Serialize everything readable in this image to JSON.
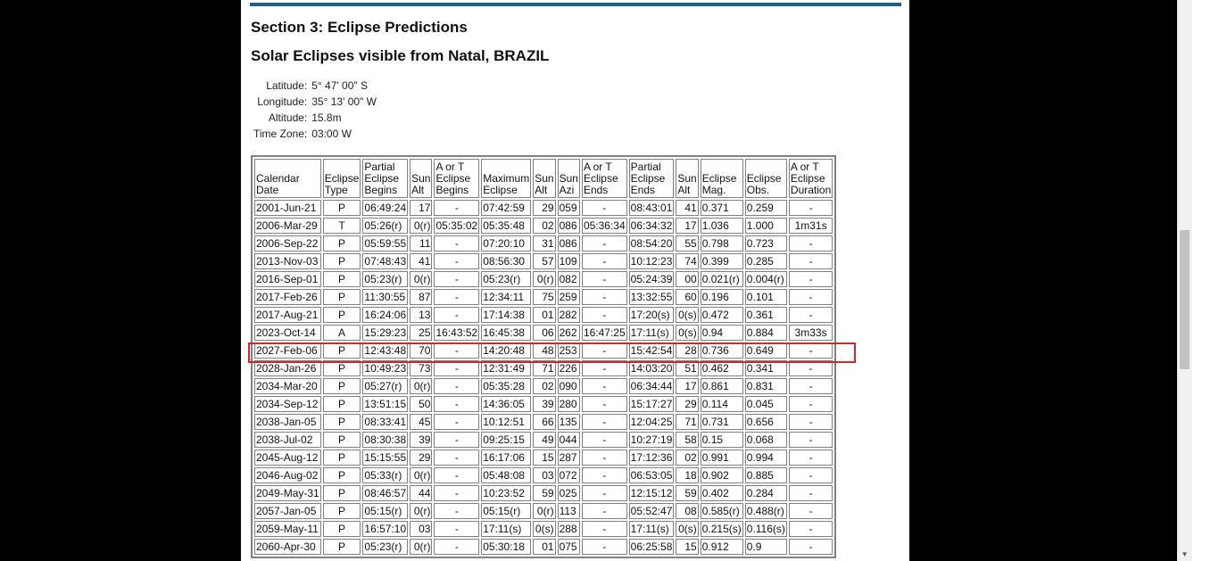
{
  "section_title": "Section 3: Eclipse Predictions",
  "subtitle": "Solar Eclipses visible from Natal, BRAZIL",
  "location": [
    {
      "label": "Latitude:",
      "value": "5° 47' 00\" S"
    },
    {
      "label": "Longitude:",
      "value": "35° 13' 00\" W"
    },
    {
      "label": "Altitude:",
      "value": "15.8m"
    },
    {
      "label": "Time Zone:",
      "value": "03:00 W"
    }
  ],
  "table": {
    "headers": [
      [
        "Calendar",
        "Date"
      ],
      [
        "Eclipse",
        "Type"
      ],
      [
        "Partial",
        "Eclipse",
        "Begins"
      ],
      [
        "Sun",
        "Alt"
      ],
      [
        "A or T",
        "Eclipse",
        "Begins"
      ],
      [
        "Maximum",
        "Eclipse"
      ],
      [
        "Sun",
        "Alt"
      ],
      [
        "Sun",
        "Azi"
      ],
      [
        "A or T",
        "Eclipse",
        "Ends"
      ],
      [
        "Partial",
        "Eclipse",
        "Ends"
      ],
      [
        "Sun",
        "Alt"
      ],
      [
        "Eclipse",
        "Mag."
      ],
      [
        "Eclipse",
        "Obs."
      ],
      [
        "A or T",
        "Eclipse",
        "Duration"
      ]
    ],
    "rows": [
      [
        "2001-Jun-21",
        "P",
        "06:49:24",
        "17",
        "-",
        "07:42:59",
        "29",
        "059",
        "-",
        "08:43:01",
        "41",
        "0.371",
        "0.259",
        "-"
      ],
      [
        "2006-Mar-29",
        "T",
        "05:26(r)",
        "0(r)",
        "05:35:02",
        "05:35:48",
        "02",
        "086",
        "05:36:34",
        "06:34:32",
        "17",
        "1.036",
        "1.000",
        "1m31s"
      ],
      [
        "2006-Sep-22",
        "P",
        "05:59:55",
        "11",
        "-",
        "07:20:10",
        "31",
        "086",
        "-",
        "08:54:20",
        "55",
        "0.798",
        "0.723",
        "-"
      ],
      [
        "2013-Nov-03",
        "P",
        "07:48:43",
        "41",
        "-",
        "08:56:30",
        "57",
        "109",
        "-",
        "10:12:23",
        "74",
        "0.399",
        "0.285",
        "-"
      ],
      [
        "2016-Sep-01",
        "P",
        "05:23(r)",
        "0(r)",
        "-",
        "05:23(r)",
        "0(r)",
        "082",
        "-",
        "05:24:39",
        "00",
        "0.021(r)",
        "0.004(r)",
        "-"
      ],
      [
        "2017-Feb-26",
        "P",
        "11:30:55",
        "87",
        "-",
        "12:34:11",
        "75",
        "259",
        "-",
        "13:32:55",
        "60",
        "0.196",
        "0.101",
        "-"
      ],
      [
        "2017-Aug-21",
        "P",
        "16:24:06",
        "13",
        "-",
        "17:14:38",
        "01",
        "282",
        "-",
        "17:20(s)",
        "0(s)",
        "0.472",
        "0.361",
        "-"
      ],
      [
        "2023-Oct-14",
        "A",
        "15:29:23",
        "25",
        "16:43:52",
        "16:45:38",
        "06",
        "262",
        "16:47:25",
        "17:11(s)",
        "0(s)",
        "0.94",
        "0.884",
        "3m33s"
      ],
      [
        "2027-Feb-06",
        "P",
        "12:43:48",
        "70",
        "-",
        "14:20:48",
        "48",
        "253",
        "-",
        "15:42:54",
        "28",
        "0.736",
        "0.649",
        "-"
      ],
      [
        "2028-Jan-26",
        "P",
        "10:49:23",
        "73",
        "-",
        "12:31:49",
        "71",
        "226",
        "-",
        "14:03:20",
        "51",
        "0.462",
        "0.341",
        "-"
      ],
      [
        "2034-Mar-20",
        "P",
        "05:27(r)",
        "0(r)",
        "-",
        "05:35:28",
        "02",
        "090",
        "-",
        "06:34:44",
        "17",
        "0.861",
        "0.831",
        "-"
      ],
      [
        "2034-Sep-12",
        "P",
        "13:51:15",
        "50",
        "-",
        "14:36:05",
        "39",
        "280",
        "-",
        "15:17:27",
        "29",
        "0.114",
        "0.045",
        "-"
      ],
      [
        "2038-Jan-05",
        "P",
        "08:33:41",
        "45",
        "-",
        "10:12:51",
        "66",
        "135",
        "-",
        "12:04:25",
        "71",
        "0.731",
        "0.656",
        "-"
      ],
      [
        "2038-Jul-02",
        "P",
        "08:30:38",
        "39",
        "-",
        "09:25:15",
        "49",
        "044",
        "-",
        "10:27:19",
        "58",
        "0.15",
        "0.068",
        "-"
      ],
      [
        "2045-Aug-12",
        "P",
        "15:15:55",
        "29",
        "-",
        "16:17:06",
        "15",
        "287",
        "-",
        "17:12:36",
        "02",
        "0.991",
        "0.994",
        "-"
      ],
      [
        "2046-Aug-02",
        "P",
        "05:33(r)",
        "0(r)",
        "-",
        "05:48:08",
        "03",
        "072",
        "-",
        "06:53:05",
        "18",
        "0.902",
        "0.885",
        "-"
      ],
      [
        "2049-May-31",
        "P",
        "08:46:57",
        "44",
        "-",
        "10:23:52",
        "59",
        "025",
        "-",
        "12:15:12",
        "59",
        "0.402",
        "0.284",
        "-"
      ],
      [
        "2057-Jan-05",
        "P",
        "05:15(r)",
        "0(r)",
        "-",
        "05:15(r)",
        "0(r)",
        "113",
        "-",
        "05:52:47",
        "08",
        "0.585(r)",
        "0.488(r)",
        "-"
      ],
      [
        "2059-May-11",
        "P",
        "16:57:10",
        "03",
        "-",
        "17:11(s)",
        "0(s)",
        "288",
        "-",
        "17:11(s)",
        "0(s)",
        "0.215(s)",
        "0.116(s)",
        "-"
      ],
      [
        "2060-Apr-30",
        "P",
        "05:23(r)",
        "0(r)",
        "-",
        "05:30:18",
        "01",
        "075",
        "-",
        "06:25:58",
        "15",
        "0.912",
        "0.9",
        "-"
      ]
    ],
    "col_align": [
      "l",
      "c",
      "l",
      "r",
      "c",
      "l",
      "r",
      "l",
      "c",
      "l",
      "r",
      "l",
      "l",
      "c"
    ]
  },
  "highlight_color": "#d8242d",
  "accent_bar_color": "#1d5e8f"
}
